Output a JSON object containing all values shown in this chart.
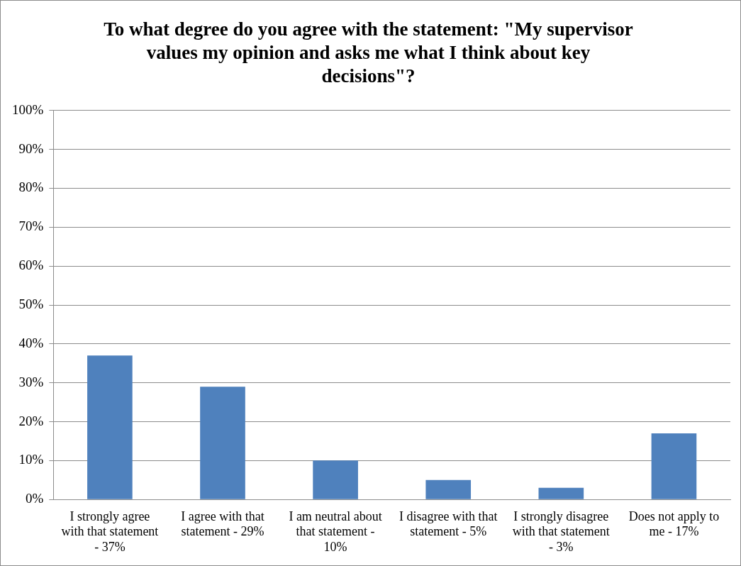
{
  "chart_data": {
    "type": "bar",
    "title": "To what degree do you agree with the statement: \"My supervisor values my opinion and asks me what I think about key decisions\"?",
    "categories": [
      "I strongly agree with that statement - 37%",
      "I agree with that statement - 29%",
      "I am neutral about that statement - 10%",
      "I disagree with that statement - 5%",
      "I strongly disagree with that statement - 3%",
      "Does not apply to me - 17%"
    ],
    "values": [
      37,
      29,
      10,
      5,
      3,
      17
    ],
    "color": "#4f81bd",
    "ylim": [
      0,
      100
    ],
    "yticks": [
      {
        "value": 0,
        "label": "0%"
      },
      {
        "value": 10,
        "label": "10%"
      },
      {
        "value": 20,
        "label": "20%"
      },
      {
        "value": 30,
        "label": "30%"
      },
      {
        "value": 40,
        "label": "40%"
      },
      {
        "value": 50,
        "label": "50%"
      },
      {
        "value": 60,
        "label": "60%"
      },
      {
        "value": 70,
        "label": "70%"
      },
      {
        "value": 80,
        "label": "80%"
      },
      {
        "value": 90,
        "label": "90%"
      },
      {
        "value": 100,
        "label": "100%"
      }
    ],
    "grid": "y",
    "legend": false
  }
}
